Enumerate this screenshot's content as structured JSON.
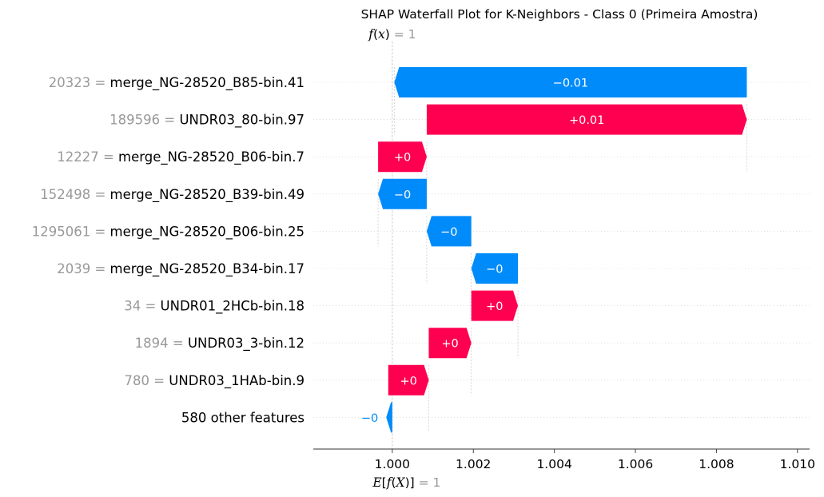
{
  "chart_data": {
    "type": "waterfall",
    "title": "SHAP Waterfall Plot for K-Neighbors - Class 0 (Primeira Amostra)",
    "fx_label": {
      "func": "f",
      "arg": "x",
      "suffix": ")",
      "eq": " = 1"
    },
    "efx_label": {
      "outer": "E",
      "inner_func": "f",
      "inner_arg": "X",
      "close": ")]",
      "eq": " = 1"
    },
    "base_value": 1.0,
    "xlim": [
      0.99805,
      1.0103
    ],
    "xticks": [
      1.0,
      1.002,
      1.004,
      1.006,
      1.008,
      1.01
    ],
    "xtick_labels": [
      "1.000",
      "1.002",
      "1.004",
      "1.006",
      "1.008",
      "1.010"
    ],
    "colors": {
      "positive": "#ff0051",
      "negative": "#008bfb",
      "feature_value": "#999999",
      "grid": "#cccccc"
    },
    "rows": [
      {
        "feature_value": "20323 = ",
        "feature": "merge_NG-28520_B85-bin.41",
        "start": 1.00875,
        "end": 1.00005,
        "label": "−0.01",
        "label_pos": "inside"
      },
      {
        "feature_value": "189596 = ",
        "feature": "UNDR03_80-bin.97",
        "start": 1.00085,
        "end": 1.00875,
        "label": "+0.01",
        "label_pos": "inside"
      },
      {
        "feature_value": "12227 = ",
        "feature": "merge_NG-28520_B06-bin.7",
        "start": 0.99965,
        "end": 1.00085,
        "label": "+0",
        "label_pos": "inside"
      },
      {
        "feature_value": "152498 = ",
        "feature": "merge_NG-28520_B39-bin.49",
        "start": 1.00085,
        "end": 0.99965,
        "label": "−0",
        "label_pos": "inside"
      },
      {
        "feature_value": "1295061 = ",
        "feature": "merge_NG-28520_B06-bin.25",
        "start": 1.00195,
        "end": 1.00085,
        "label": "−0",
        "label_pos": "inside"
      },
      {
        "feature_value": "2039 = ",
        "feature": "merge_NG-28520_B34-bin.17",
        "start": 1.0031,
        "end": 1.00195,
        "label": "−0",
        "label_pos": "inside"
      },
      {
        "feature_value": "34 = ",
        "feature": "UNDR01_2HCb-bin.18",
        "start": 1.00195,
        "end": 1.0031,
        "label": "+0",
        "label_pos": "inside"
      },
      {
        "feature_value": "1894 = ",
        "feature": "UNDR03_3-bin.12",
        "start": 1.0009,
        "end": 1.00195,
        "label": "+0",
        "label_pos": "inside"
      },
      {
        "feature_value": "780 = ",
        "feature": "UNDR03_1HAb-bin.9",
        "start": 0.9999,
        "end": 1.0009,
        "label": "+0",
        "label_pos": "inside"
      },
      {
        "feature_value": "",
        "feature": "580 other features",
        "start": 1.0,
        "end": 0.99985,
        "label": "−0",
        "label_pos": "outside"
      }
    ]
  }
}
